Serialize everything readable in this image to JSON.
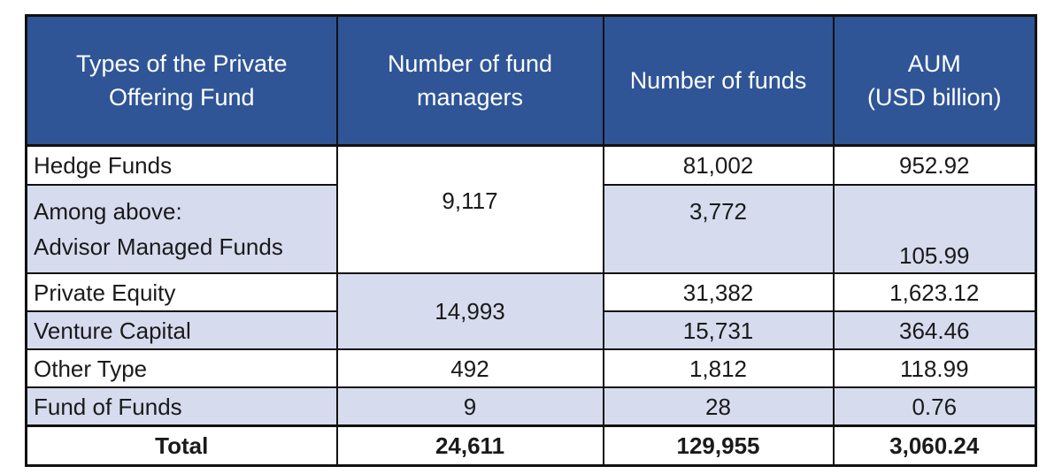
{
  "table": {
    "headers": [
      "Types of the Private Offering Fund",
      "Number of fund managers",
      "Number of funds",
      "AUM (USD billion)"
    ],
    "header_lines": {
      "type": [
        "Types of the Private",
        "Offering Fund"
      ],
      "managers": [
        "Number of fund",
        "managers"
      ],
      "funds": [
        "Number of funds"
      ],
      "aum": [
        "AUM",
        "(USD billion)"
      ]
    },
    "rows": [
      {
        "type": "Hedge Funds",
        "managers": "9,117",
        "funds": "81,002",
        "aum": "952.92"
      },
      {
        "type_lines": [
          "Among above:",
          "Advisor Managed Funds"
        ],
        "funds": "3,772",
        "aum": "105.99"
      },
      {
        "type": "Private Equity",
        "managers": "14,993",
        "funds": "31,382",
        "aum": "1,623.12"
      },
      {
        "type": "Venture Capital",
        "funds": "15,731",
        "aum": "364.46"
      },
      {
        "type": "Other Type",
        "managers": "492",
        "funds": "1,812",
        "aum": "118.99"
      },
      {
        "type": "Fund of Funds",
        "managers": "9",
        "funds": "28",
        "aum": "0.76"
      }
    ],
    "total": {
      "label": "Total",
      "managers": "24,611",
      "funds": "129,955",
      "aum": "3,060.24"
    },
    "merged_cells": [
      {
        "column": "managers",
        "rows": [
          "Hedge Funds",
          "Among above: Advisor Managed Funds"
        ],
        "value": "9,117"
      },
      {
        "column": "managers",
        "rows": [
          "Private Equity",
          "Venture Capital"
        ],
        "value": "14,993"
      }
    ]
  },
  "colors": {
    "header_bg": "#2f5597",
    "header_text": "#ffffff",
    "band_light": "#ffffff",
    "band_blue": "#d6dcee",
    "border": "#111111"
  }
}
